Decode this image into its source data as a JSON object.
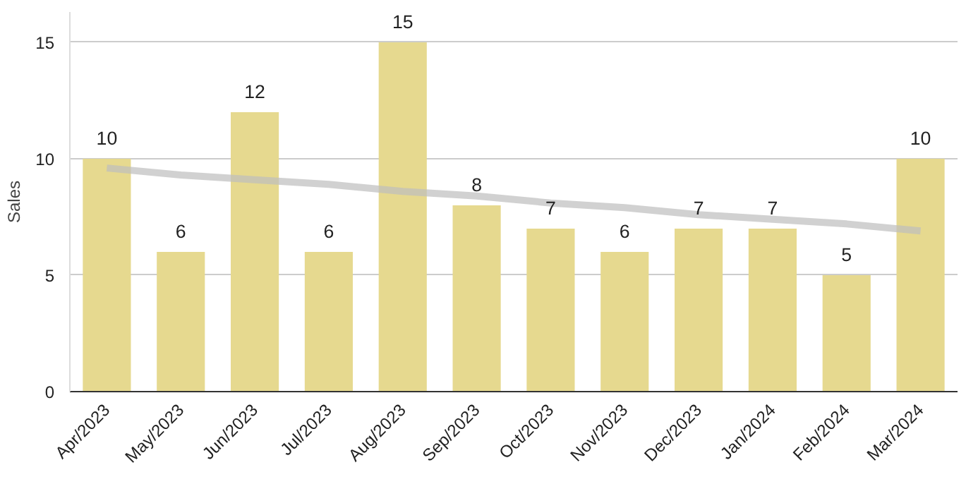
{
  "chart_data": {
    "type": "bar",
    "ylabel": "Sales",
    "categories": [
      "Apr/2023",
      "May/2023",
      "Jun/2023",
      "Jul/2023",
      "Aug/2023",
      "Sep/2023",
      "Oct/2023",
      "Nov/2023",
      "Dec/2023",
      "Jan/2024",
      "Feb/2024",
      "Mar/2024"
    ],
    "series": [
      {
        "color": "#e6d98f",
        "values": [
          10,
          6,
          12,
          6,
          15,
          8,
          7,
          6,
          7,
          7,
          5,
          10
        ],
        "value_labels": [
          "10",
          "6",
          "12",
          "6",
          "15",
          "8",
          "7",
          "6",
          "7",
          "7",
          "5",
          "10"
        ]
      },
      {
        "type": "line",
        "color": "#bdbdbd",
        "values": [
          9.6,
          9.3,
          9.1,
          8.9,
          8.6,
          8.4,
          8.1,
          7.9,
          7.6,
          7.4,
          7.2,
          6.9
        ]
      }
    ],
    "ylim": [
      0,
      16.3
    ],
    "yticks": [
      0,
      5,
      10,
      15
    ],
    "grid": "y"
  }
}
